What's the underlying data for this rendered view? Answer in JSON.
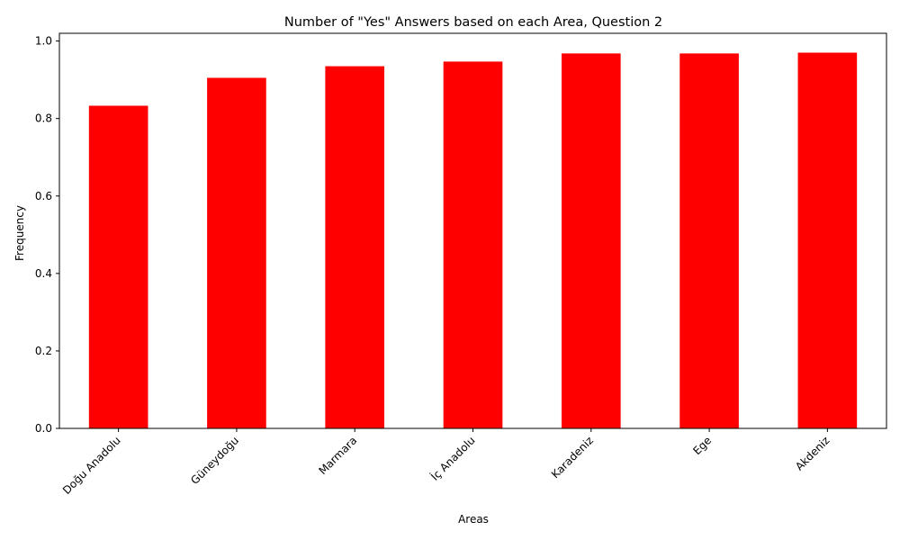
{
  "chart_data": {
    "type": "bar",
    "title": "Number of \"Yes\" Answers based on each Area, Question 2",
    "xlabel": "Areas",
    "ylabel": "Frequency",
    "categories": [
      "Doğu Anadolu",
      "Güneydoğu",
      "Marmara",
      "İç Anadolu",
      "Karadeniz",
      "Ege",
      "Akdeniz"
    ],
    "values": [
      0.833,
      0.905,
      0.935,
      0.947,
      0.968,
      0.968,
      0.97
    ],
    "ylim": [
      0,
      1.02
    ],
    "yticks": [
      "0.0",
      "0.2",
      "0.4",
      "0.6",
      "0.8",
      "1.0"
    ],
    "bar_color": "#ff0000",
    "grid": false,
    "legend": "none"
  }
}
